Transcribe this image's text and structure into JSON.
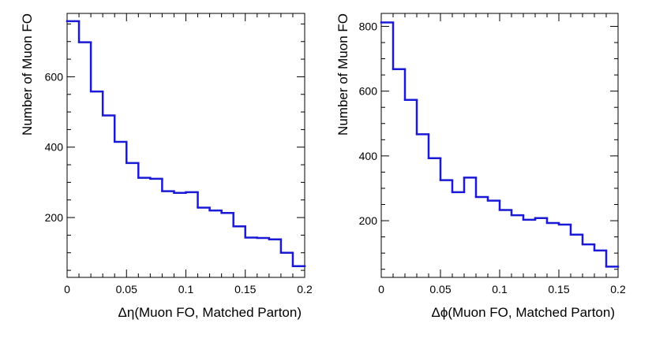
{
  "chart_data": [
    {
      "type": "histogram",
      "xlabel": "Δη(Muon FO, Matched Parton)",
      "ylabel": "Number of Muon FO",
      "xlim": [
        0,
        0.2
      ],
      "ylim": [
        30,
        780
      ],
      "bin_width": 0.01,
      "bin_edges_start": 0,
      "values": [
        758,
        698,
        558,
        490,
        415,
        355,
        313,
        310,
        275,
        270,
        272,
        228,
        220,
        213,
        175,
        143,
        142,
        138,
        100,
        62
      ],
      "x_ticks": [
        0,
        0.05,
        0.1,
        0.15,
        0.2
      ],
      "x_tick_labels": [
        "0",
        "0.05",
        "0.1",
        "0.15",
        "0.2"
      ],
      "y_ticks": [
        200,
        400,
        600
      ],
      "y_tick_labels": [
        "200",
        "400",
        "600"
      ],
      "line_color": "#1a1ad6",
      "grid": false
    },
    {
      "type": "histogram",
      "xlabel": "Δϕ(Muon FO, Matched Parton)",
      "ylabel": "Number of Muon FO",
      "xlim": [
        0,
        0.2
      ],
      "ylim": [
        25,
        840
      ],
      "bin_width": 0.01,
      "bin_edges_start": 0,
      "values": [
        812,
        668,
        573,
        467,
        393,
        325,
        288,
        333,
        273,
        262,
        233,
        217,
        203,
        208,
        193,
        188,
        157,
        127,
        108,
        58
      ],
      "x_ticks": [
        0,
        0.05,
        0.1,
        0.15,
        0.2
      ],
      "x_tick_labels": [
        "0",
        "0.05",
        "0.1",
        "0.15",
        "0.2"
      ],
      "y_ticks": [
        200,
        400,
        600,
        800
      ],
      "y_tick_labels": [
        "200",
        "400",
        "600",
        "800"
      ],
      "line_color": "#1a1ad6",
      "grid": false
    }
  ]
}
